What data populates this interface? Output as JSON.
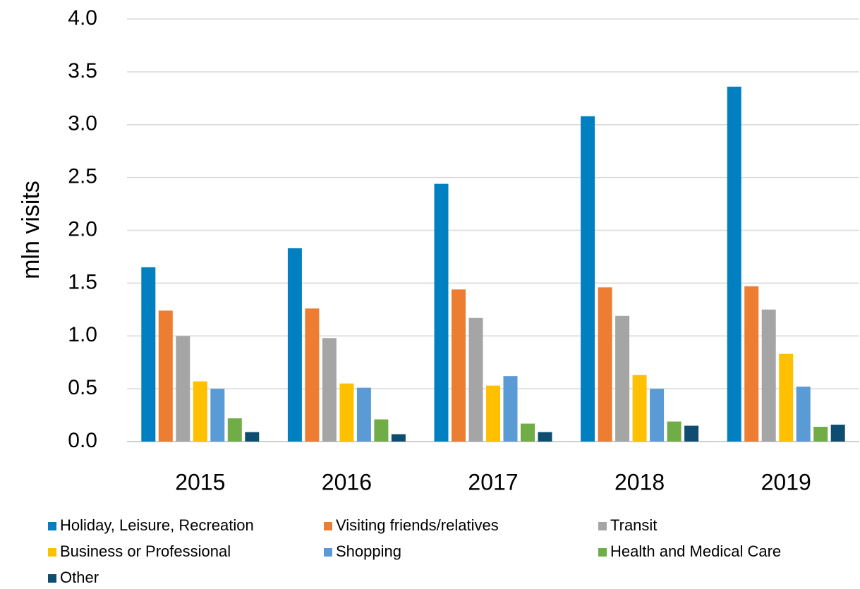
{
  "chart_data": {
    "type": "bar",
    "y_label": "mln visits",
    "categories": [
      "2015",
      "2016",
      "2017",
      "2018",
      "2019"
    ],
    "series": [
      {
        "name": "Holiday, Leisure, Recreation",
        "color": "#0080C0",
        "values": [
          1.65,
          1.83,
          2.44,
          3.08,
          3.36
        ]
      },
      {
        "name": "Visiting friends/relatives",
        "color": "#ED7D31",
        "values": [
          1.24,
          1.26,
          1.44,
          1.46,
          1.47
        ]
      },
      {
        "name": "Transit",
        "color": "#A5A5A5",
        "values": [
          1.0,
          0.98,
          1.17,
          1.19,
          1.25
        ]
      },
      {
        "name": "Business or Professional",
        "color": "#FFC000",
        "values": [
          0.57,
          0.55,
          0.53,
          0.63,
          0.83
        ]
      },
      {
        "name": "Shopping",
        "color": "#5B9BD5",
        "values": [
          0.5,
          0.51,
          0.62,
          0.5,
          0.52
        ]
      },
      {
        "name": "Health and Medical Care",
        "color": "#70AD47",
        "values": [
          0.22,
          0.21,
          0.17,
          0.19,
          0.14
        ]
      },
      {
        "name": "Other",
        "color": "#0E4D70",
        "values": [
          0.09,
          0.07,
          0.09,
          0.15,
          0.16
        ]
      }
    ],
    "ylim": [
      0,
      4
    ],
    "yticks": [
      {
        "value": 0,
        "label": "0.0"
      },
      0.5,
      {
        "value": 1,
        "label": "1.0"
      },
      1.5,
      {
        "value": 2,
        "label": "2.0"
      },
      2.5,
      {
        "value": 3,
        "label": "3.0"
      },
      3.5,
      {
        "value": 4,
        "label": "4.0"
      }
    ],
    "grid": true,
    "legend": "bottom"
  }
}
